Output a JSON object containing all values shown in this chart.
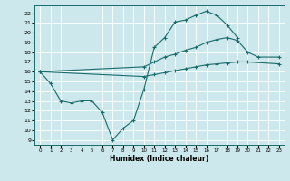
{
  "xlabel": "Humidex (Indice chaleur)",
  "xlim": [
    -0.5,
    23.5
  ],
  "ylim": [
    8.5,
    22.8
  ],
  "yticks": [
    9,
    10,
    11,
    12,
    13,
    14,
    15,
    16,
    17,
    18,
    19,
    20,
    21,
    22
  ],
  "xticks": [
    0,
    1,
    2,
    3,
    4,
    5,
    6,
    7,
    8,
    9,
    10,
    11,
    12,
    13,
    14,
    15,
    16,
    17,
    18,
    19,
    20,
    21,
    22,
    23
  ],
  "bg_color": "#cce8ec",
  "line_color": "#1a6b6b",
  "grid_color": "#ffffff",
  "line1_x": [
    0,
    1,
    2,
    3,
    4,
    5,
    6,
    7,
    8,
    9,
    10,
    11,
    12,
    13,
    14,
    15,
    16,
    17,
    18,
    19
  ],
  "line1_y": [
    16.0,
    14.8,
    13.0,
    12.8,
    13.0,
    13.0,
    11.8,
    9.0,
    10.2,
    11.0,
    14.2,
    18.5,
    19.5,
    21.1,
    21.3,
    21.8,
    22.2,
    21.8,
    20.8,
    19.5
  ],
  "line2_x": [
    0,
    10,
    11,
    12,
    13,
    14,
    15,
    16,
    17,
    18,
    19,
    20,
    21,
    23
  ],
  "line2_y": [
    16.0,
    16.5,
    17.0,
    17.5,
    17.8,
    18.2,
    18.5,
    19.0,
    19.3,
    19.5,
    19.2,
    18.0,
    17.5,
    17.5
  ],
  "line3_x": [
    0,
    10,
    11,
    12,
    13,
    14,
    15,
    16,
    17,
    18,
    19,
    20,
    23
  ],
  "line3_y": [
    16.0,
    15.5,
    15.7,
    15.9,
    16.1,
    16.3,
    16.5,
    16.7,
    16.8,
    16.9,
    17.0,
    17.0,
    16.8
  ]
}
